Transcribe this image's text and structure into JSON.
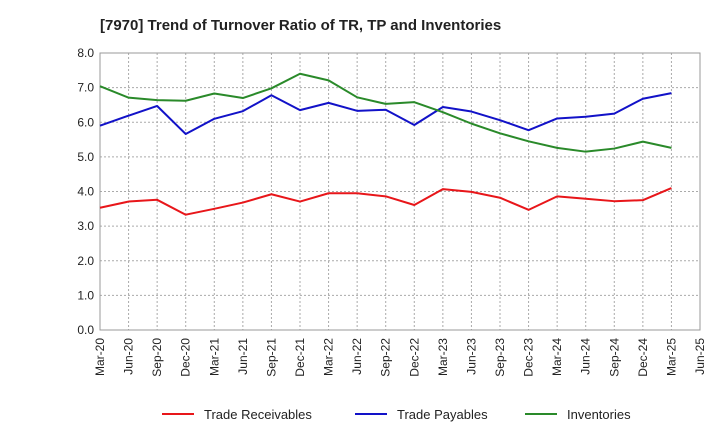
{
  "chart_data": {
    "type": "line",
    "title": "[7970]  Trend of Turnover Ratio of TR, TP and Inventories",
    "xlabel": "",
    "ylabel": "",
    "ylim": [
      0,
      8
    ],
    "y_ticks": [
      "0.0",
      "1.0",
      "2.0",
      "3.0",
      "4.0",
      "5.0",
      "6.0",
      "7.0",
      "8.0"
    ],
    "categories": [
      "Mar-20",
      "Jun-20",
      "Sep-20",
      "Dec-20",
      "Mar-21",
      "Jun-21",
      "Sep-21",
      "Dec-21",
      "Mar-22",
      "Jun-22",
      "Sep-22",
      "Dec-22",
      "Mar-23",
      "Jun-23",
      "Sep-23",
      "Dec-23",
      "Mar-24",
      "Jun-24",
      "Sep-24",
      "Dec-24",
      "Mar-25",
      "Jun-25"
    ],
    "grid": true,
    "legend_position": "bottom",
    "series": [
      {
        "name": "Trade Receivables",
        "color": "#e8161a",
        "values": [
          3.53,
          3.71,
          3.76,
          3.33,
          3.5,
          3.68,
          3.92,
          3.71,
          3.95,
          3.95,
          3.86,
          3.61,
          4.07,
          3.99,
          3.82,
          3.47,
          3.86,
          3.79,
          3.72,
          3.75,
          4.1,
          null
        ]
      },
      {
        "name": "Trade Payables",
        "color": "#1212c8",
        "values": [
          5.9,
          6.19,
          6.47,
          5.66,
          6.1,
          6.32,
          6.78,
          6.35,
          6.56,
          6.33,
          6.36,
          5.92,
          6.44,
          6.31,
          6.06,
          5.77,
          6.11,
          6.16,
          6.25,
          6.68,
          6.84,
          null
        ]
      },
      {
        "name": "Inventories",
        "color": "#2a8a2a",
        "values": [
          7.04,
          6.71,
          6.64,
          6.62,
          6.83,
          6.7,
          6.98,
          7.4,
          7.21,
          6.72,
          6.53,
          6.58,
          6.29,
          5.96,
          5.68,
          5.45,
          5.26,
          5.15,
          5.24,
          5.44,
          5.26,
          null
        ]
      }
    ]
  }
}
